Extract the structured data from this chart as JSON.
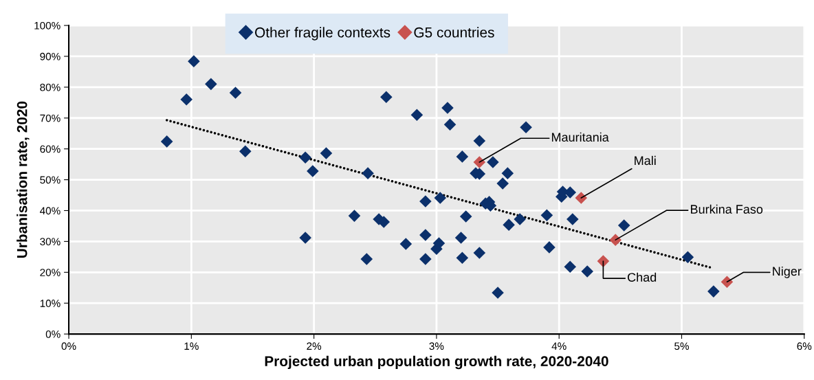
{
  "chart_data": {
    "type": "scatter",
    "xlabel": "Projected urban population growth rate, 2020-2040",
    "ylabel": "Urbanisation rate, 2020",
    "xlim": [
      0,
      6
    ],
    "xticks": [
      {
        "value": 0,
        "label": "0%"
      },
      {
        "value": 1,
        "label": "1%"
      },
      {
        "value": 2,
        "label": "2%"
      },
      {
        "value": 3,
        "label": "3%"
      },
      {
        "value": 4,
        "label": "4%"
      },
      {
        "value": 5,
        "label": "5%"
      },
      {
        "value": 6,
        "label": "6%"
      }
    ],
    "ylim": [
      0,
      100
    ],
    "yticks": [
      {
        "value": 0,
        "label": "0%"
      },
      {
        "value": 10,
        "label": "10%"
      },
      {
        "value": 20,
        "label": "20%"
      },
      {
        "value": 30,
        "label": "30%"
      },
      {
        "value": 40,
        "label": "40%"
      },
      {
        "value": 50,
        "label": "50%"
      },
      {
        "value": 60,
        "label": "60%"
      },
      {
        "value": 70,
        "label": "70%"
      },
      {
        "value": 80,
        "label": "80%"
      },
      {
        "value": 90,
        "label": "90%"
      },
      {
        "value": 100,
        "label": "100%"
      }
    ],
    "grid": true,
    "legend": "top",
    "marker": "diamond",
    "series": [
      {
        "name": "Other fragile contexts",
        "color": "#0b306b",
        "x": [
          0.8,
          0.96,
          1.02,
          1.16,
          1.36,
          1.44,
          1.93,
          1.99,
          2.1,
          1.93,
          2.33,
          2.44,
          2.43,
          2.53,
          2.57,
          2.59,
          2.75,
          2.84,
          2.91,
          2.91,
          2.91,
          3.0,
          3.02,
          3.03,
          3.09,
          3.11,
          3.24,
          3.21,
          3.2,
          3.21,
          3.35,
          3.32,
          3.35,
          3.35,
          3.46,
          3.4,
          3.43,
          3.44,
          3.5,
          3.54,
          3.58,
          3.59,
          3.68,
          3.73,
          3.9,
          3.92,
          4.02,
          4.03,
          4.09,
          4.11,
          4.09,
          4.23,
          4.53,
          5.05,
          5.26
        ],
        "values": [
          62.4,
          76,
          88.4,
          81,
          78.2,
          59.2,
          57.2,
          52.8,
          58.6,
          31.2,
          38.3,
          52.1,
          24.3,
          37.2,
          36.3,
          76.8,
          29.2,
          71,
          43,
          24.3,
          32.1,
          27.6,
          29.4,
          44.1,
          73.3,
          67.9,
          38.1,
          57.5,
          31.2,
          24.7,
          62.6,
          52.1,
          51.9,
          26.3,
          55.7,
          42.3,
          42.8,
          41.6,
          13.4,
          48.8,
          52.1,
          35.4,
          37.2,
          67,
          38.5,
          28.1,
          44.5,
          46.1,
          45.9,
          37.2,
          21.8,
          20.3,
          35.2,
          24.9,
          13.8
        ]
      },
      {
        "name": "G5 countries",
        "color": "#c8524f",
        "x": [
          3.35,
          4.18,
          4.46,
          4.36,
          5.37
        ],
        "values": [
          55.7,
          44.1,
          30.5,
          23.6,
          16.9
        ]
      },
      {
        "type": "line",
        "color": "#000000",
        "line_style": "dotted",
        "marker": "none",
        "x": [
          0.8,
          5.23
        ],
        "values": [
          69.3,
          21.6
        ]
      }
    ],
    "annotations": [
      {
        "text": "Mauritania",
        "x": 3.35,
        "y": 55.7
      },
      {
        "text": "Mali",
        "x": 4.18,
        "y": 44.1
      },
      {
        "text": "Burkina Faso",
        "x": 4.46,
        "y": 30.5
      },
      {
        "text": "Chad",
        "x": 4.36,
        "y": 23.6
      },
      {
        "text": "Niger",
        "x": 5.37,
        "y": 16.9
      }
    ]
  }
}
